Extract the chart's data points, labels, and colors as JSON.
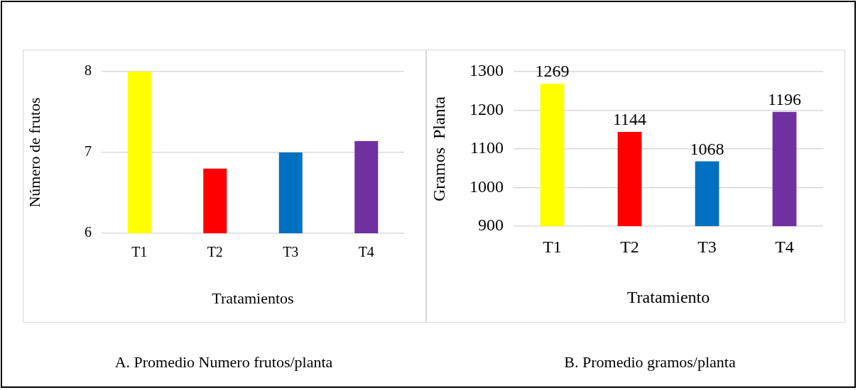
{
  "chart_data": [
    {
      "type": "bar",
      "title": "A. Promedio Numero frutos/planta",
      "xlabel": "Tratamientos",
      "ylabel": "Número de frutos",
      "categories": [
        "T1",
        "T2",
        "T3",
        "T4"
      ],
      "values": [
        8,
        6.8,
        7,
        7.14
      ],
      "colors": [
        "#ffff00",
        "#ff0000",
        "#0070c0",
        "#7030a0"
      ],
      "ylim": [
        6,
        8
      ],
      "yticks": [
        6,
        7,
        8
      ],
      "grid": "y"
    },
    {
      "type": "bar",
      "title": "B. Promedio gramos/planta",
      "xlabel": "Tratamiento",
      "ylabel": "Gramos  Planta",
      "categories": [
        "T1",
        "T2",
        "T3",
        "T4"
      ],
      "values": [
        1269,
        1144,
        1068,
        1196
      ],
      "colors": [
        "#ffff00",
        "#ff0000",
        "#0070c0",
        "#7030a0"
      ],
      "ylim": [
        900,
        1300
      ],
      "yticks": [
        900,
        1000,
        1100,
        1200,
        1300
      ],
      "grid": "y",
      "data_labels": true
    }
  ]
}
